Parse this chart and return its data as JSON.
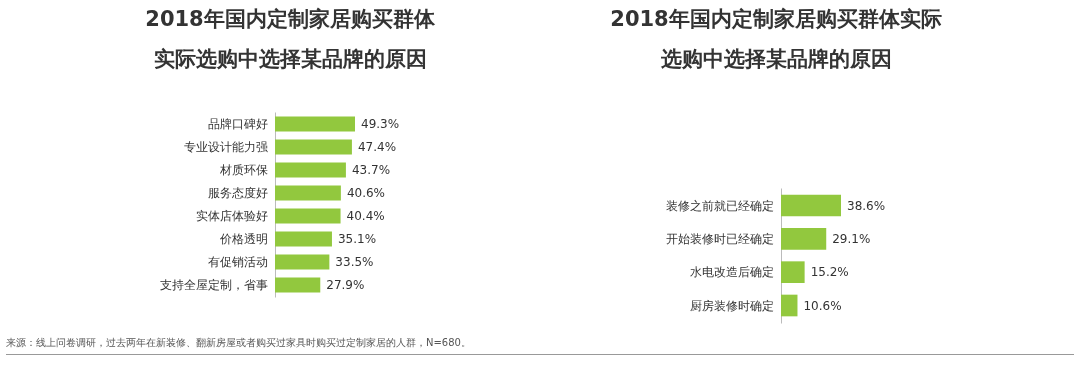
{
  "chart_data": [
    {
      "type": "bar",
      "orientation": "horizontal",
      "title": "2018年国内定制家居购买群体实际选购中选择某品牌的原因",
      "categories": [
        "品牌口碑好",
        "专业设计能力强",
        "材质环保",
        "服务态度好",
        "实体店体验好",
        "价格透明",
        "有促销活动",
        "支持全屋定制，省事"
      ],
      "values": [
        49.3,
        47.4,
        43.7,
        40.6,
        40.4,
        35.1,
        33.5,
        27.9
      ],
      "value_labels": [
        "49.3%",
        "47.4%",
        "43.7%",
        "40.6%",
        "40.4%",
        "35.1%",
        "33.5%",
        "27.9%"
      ],
      "color": "#92c83e",
      "tick_labels": "y",
      "annotations": [
        "来源：线上问卷调研，过去两年在新装修、翻新房屋或者购买过家具时购买过定制家居的人群，N=680。"
      ]
    },
    {
      "type": "bar",
      "orientation": "horizontal",
      "title": "2018年国内定制家居购买群体实际选购中选择某品牌的原因",
      "categories": [
        "装修之前就已经确定",
        "开始装修时已经确定",
        "水电改造后确定",
        "厨房装修时确定"
      ],
      "values": [
        38.6,
        29.1,
        15.2,
        10.6
      ],
      "value_labels": [
        "38.6%",
        "29.1%",
        "15.2%",
        "10.6%"
      ],
      "color": "#92c83e",
      "tick_labels": "y"
    }
  ]
}
